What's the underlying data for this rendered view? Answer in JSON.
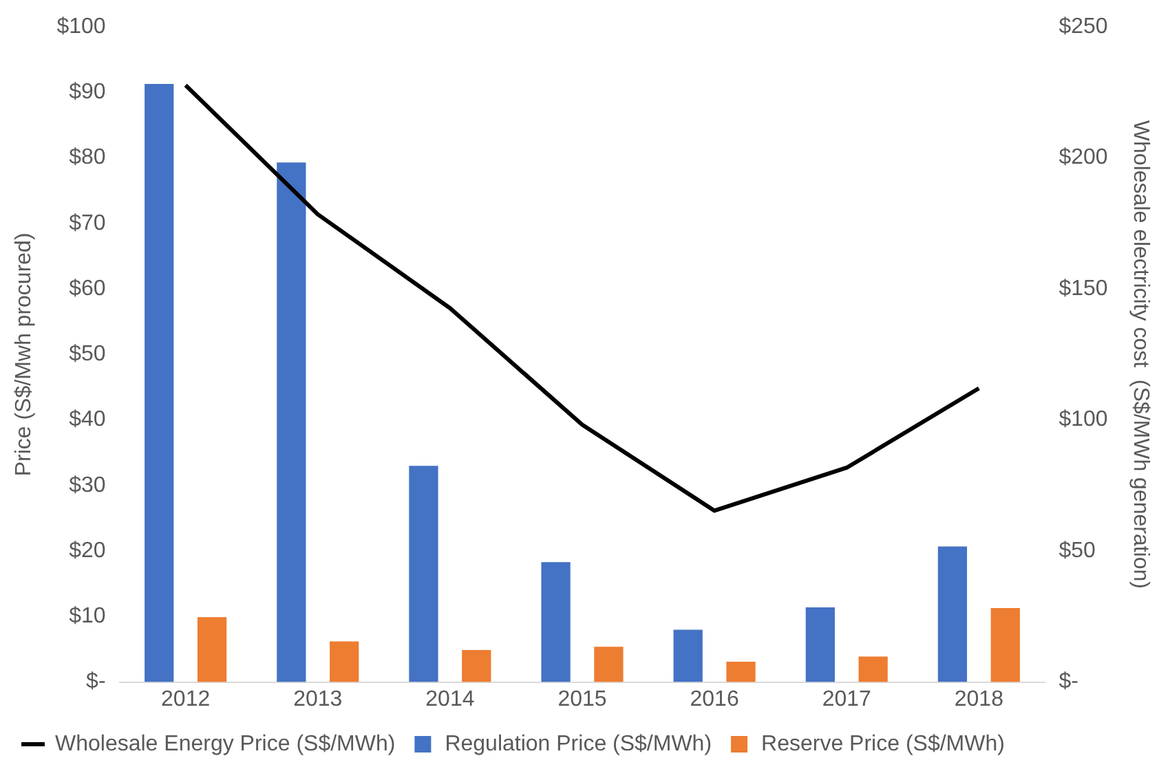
{
  "chart_data": {
    "type": "bar",
    "ylabel": "Price (S$/Mwh procured)",
    "y2label": "Wholesale electricity cost  (S$/MWh generation)",
    "categories": [
      "2012",
      "2013",
      "2014",
      "2015",
      "2016",
      "2017",
      "2018"
    ],
    "series": [
      {
        "name": "Regulation Price (S$/MWh)",
        "color": "#4472c4",
        "values": [
          91.3,
          79.3,
          33.0,
          18.3,
          8.0,
          11.4,
          20.7
        ]
      },
      {
        "name": "Reserve Price (S$/MWh)",
        "color": "#ed7d31",
        "values": [
          9.9,
          6.2,
          4.9,
          5.4,
          3.1,
          3.9,
          11.3
        ]
      },
      {
        "name": "Wholesale Energy Price (S$/MWh)",
        "color": "#000000",
        "type": "line",
        "axis": "y2",
        "values": [
          227.8,
          178.5,
          142.7,
          98.2,
          65.4,
          81.8,
          112.1
        ]
      }
    ],
    "ylim": [
      0,
      100
    ],
    "yticks": [
      {
        "value": 0,
        "label": "$-"
      },
      {
        "value": 10,
        "label": "$10"
      },
      {
        "value": 20,
        "label": "$20"
      },
      {
        "value": 30,
        "label": "$30"
      },
      {
        "value": 40,
        "label": "$40"
      },
      {
        "value": 50,
        "label": "$50"
      },
      {
        "value": 60,
        "label": "$60"
      },
      {
        "value": 70,
        "label": "$70"
      },
      {
        "value": 80,
        "label": "$80"
      },
      {
        "value": 90,
        "label": "$90"
      },
      {
        "value": 100,
        "label": "$100"
      }
    ],
    "y2lim": [
      0,
      250
    ],
    "y2ticks": [
      {
        "value": 0,
        "label": "$-"
      },
      {
        "value": 50,
        "label": "$50"
      },
      {
        "value": 100,
        "label": "$100"
      },
      {
        "value": 150,
        "label": "$150"
      },
      {
        "value": 200,
        "label": "$200"
      },
      {
        "value": 250,
        "label": "$250"
      }
    ],
    "grid": false,
    "legend": "bottom",
    "marker": "none"
  }
}
